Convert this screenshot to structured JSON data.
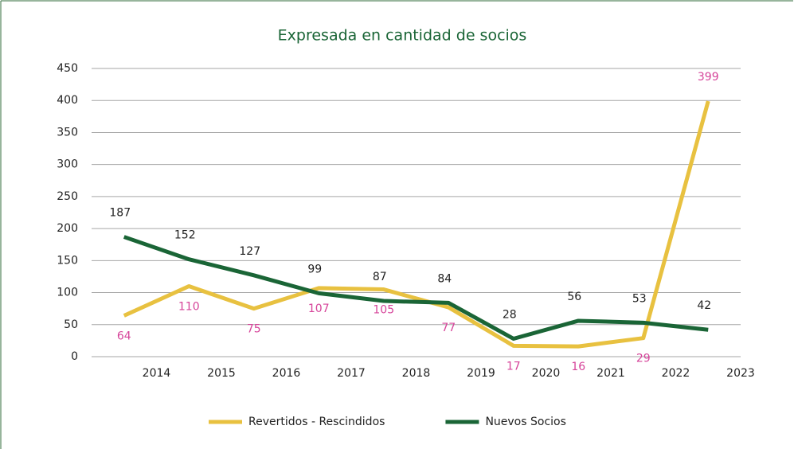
{
  "chart_data": {
    "type": "line",
    "title": "Expresada en cantidad de socios",
    "categories": [
      "2014",
      "2015",
      "2016",
      "2017",
      "2018",
      "2019",
      "2020",
      "2021",
      "2022",
      "2023"
    ],
    "series": [
      {
        "name": "Revertidos - Rescindidos",
        "color": "#e8c140",
        "label_color": "#d6449a",
        "values": [
          64,
          110,
          75,
          107,
          105,
          77,
          17,
          16,
          29,
          399
        ]
      },
      {
        "name": "Nuevos Socios",
        "color": "#1a6536",
        "label_color": "#222222",
        "values": [
          187,
          152,
          127,
          99,
          87,
          84,
          28,
          56,
          53,
          42
        ]
      }
    ],
    "ylim": [
      0,
      450
    ],
    "yticks": [
      0,
      50,
      100,
      150,
      200,
      250,
      300,
      350,
      400,
      450
    ],
    "grid": true,
    "legend": "bottom"
  }
}
